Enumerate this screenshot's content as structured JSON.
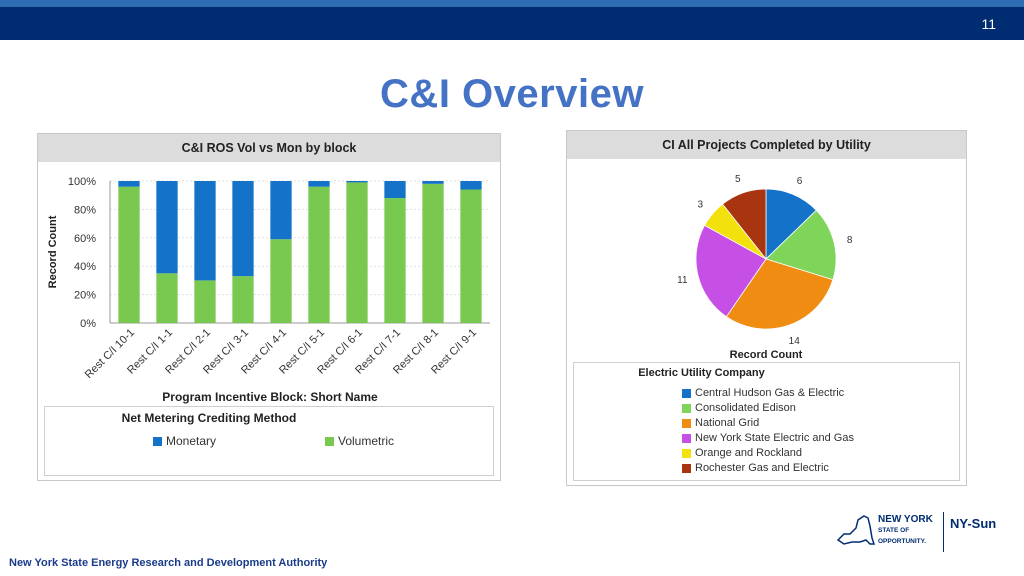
{
  "slide": {
    "number": "11",
    "title": "C&I Overview",
    "footer": "New York State Energy Research and Development Authority"
  },
  "logo": {
    "line1": "NEW YORK",
    "line2": "STATE OF",
    "line3": "OPPORTUNITY.",
    "brand": "NY-Sun"
  },
  "colors": {
    "monetary": "#1473c9",
    "volumetric": "#79c84f",
    "header_bar": "#002d72",
    "title": "#4472c4"
  },
  "chart_data": [
    {
      "type": "bar",
      "title": "C&I ROS Vol vs Mon by block",
      "xlabel": "Program Incentive Block: Short Name",
      "ylabel": "Record Count",
      "ylim": [
        0,
        100
      ],
      "yticks": [
        "0%",
        "20%",
        "40%",
        "60%",
        "80%",
        "100%"
      ],
      "stacked": true,
      "categories": [
        "Rest C/I 10-1",
        "Rest C/I 1-1",
        "Rest C/I 2-1",
        "Rest C/I 3-1",
        "Rest C/I 4-1",
        "Rest C/I 5-1",
        "Rest C/I 6-1",
        "Rest C/I 7-1",
        "Rest C/I 8-1",
        "Rest C/I 9-1"
      ],
      "series": [
        {
          "name": "Volumetric",
          "color": "#79c84f",
          "values": [
            96,
            35,
            30,
            33,
            59,
            96,
            99,
            88,
            98,
            94
          ]
        },
        {
          "name": "Monetary",
          "color": "#1473c9",
          "values": [
            4,
            65,
            70,
            67,
            41,
            4,
            1,
            12,
            2,
            6
          ]
        }
      ],
      "legend_title": "Net Metering Crediting Method",
      "legend_position": "bottom"
    },
    {
      "type": "pie",
      "title": "CI All Projects Completed by Utility",
      "xlabel": "Record Count",
      "legend_title": "Electric Utility Company",
      "legend_position": "bottom",
      "slices": [
        {
          "label": "Central Hudson Gas & Electric",
          "value": 6,
          "color": "#1473c9"
        },
        {
          "label": "Consolidated Edison",
          "value": 8,
          "color": "#7fd45a"
        },
        {
          "label": "National Grid",
          "value": 14,
          "color": "#f08c12"
        },
        {
          "label": "New York State Electric and Gas",
          "value": 11,
          "color": "#c650e6"
        },
        {
          "label": "Orange and Rockland",
          "value": 3,
          "color": "#f2e10c"
        },
        {
          "label": "Rochester Gas and Electric",
          "value": 5,
          "color": "#a83510"
        }
      ]
    }
  ]
}
